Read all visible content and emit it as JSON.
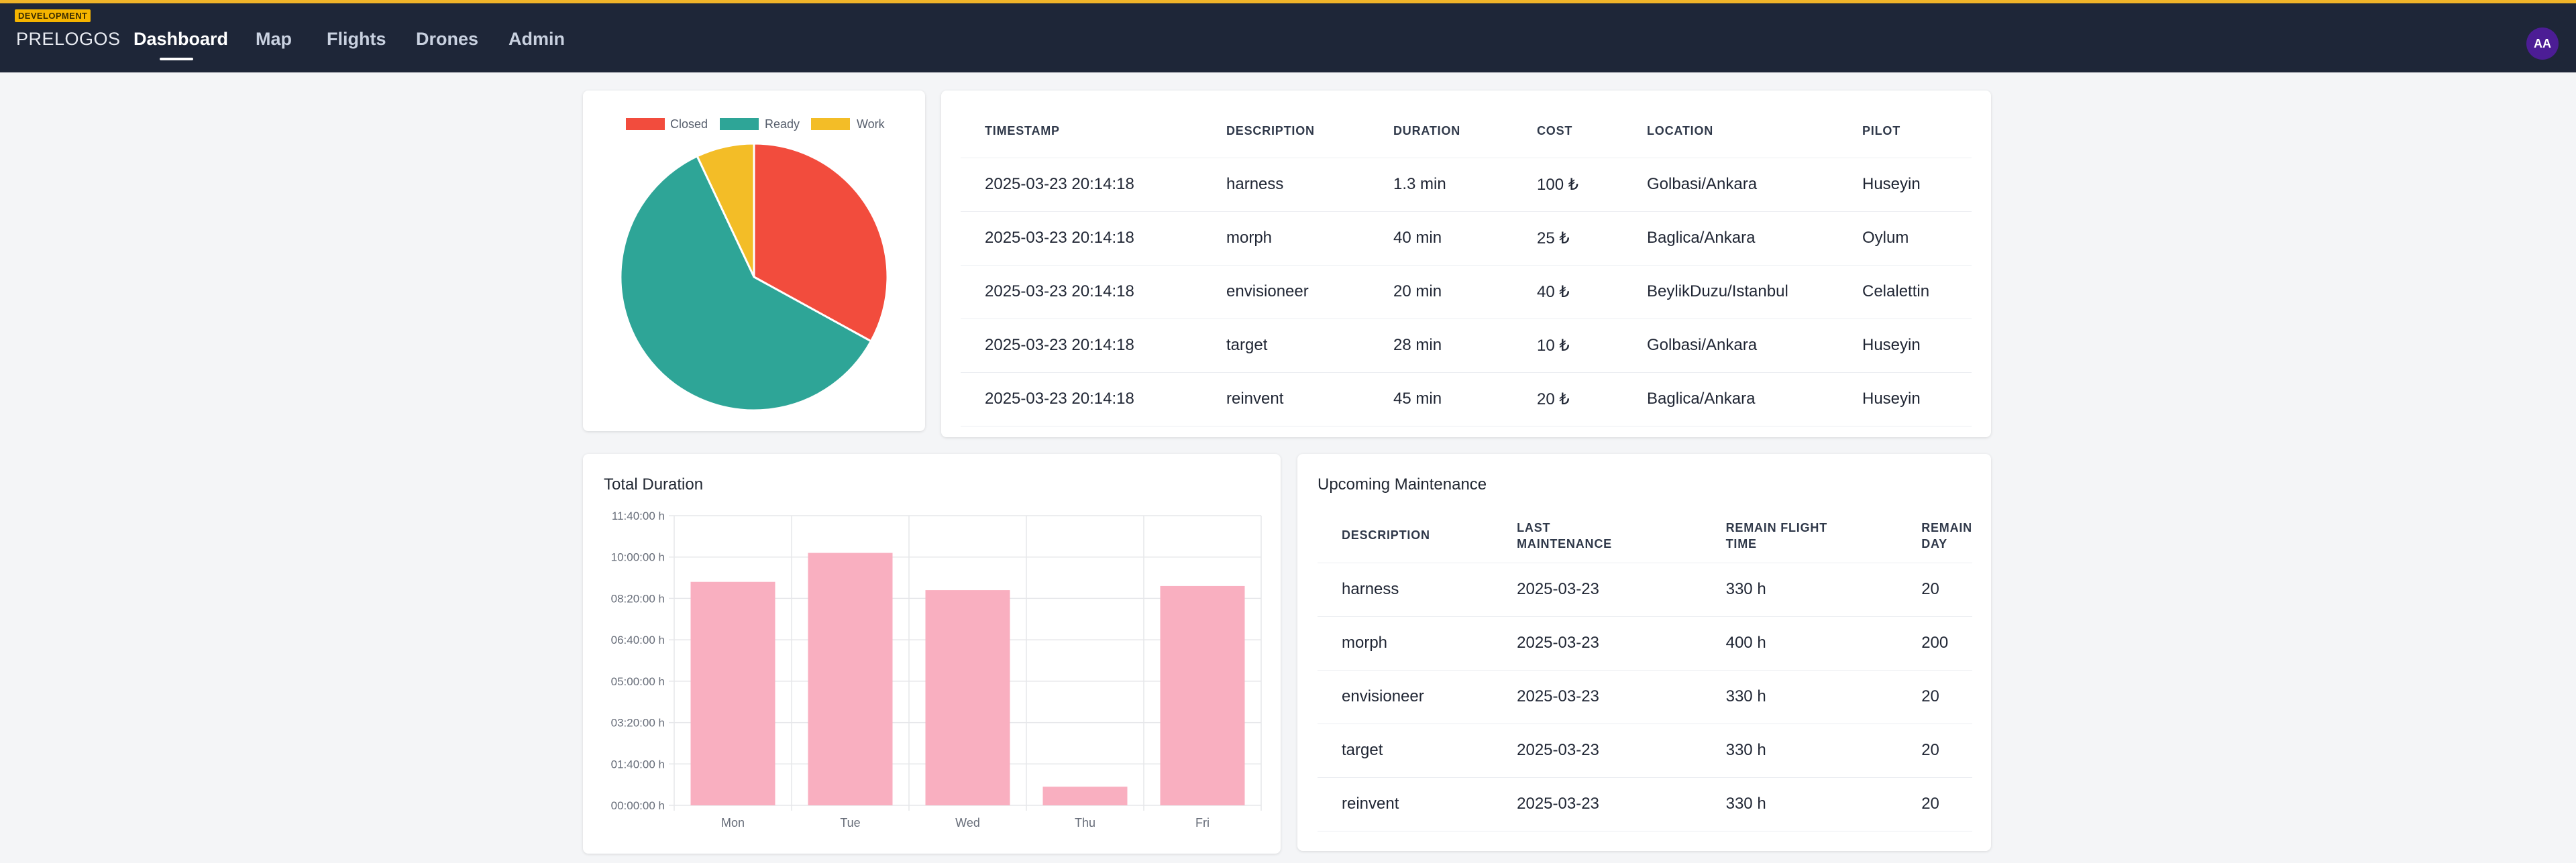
{
  "env_badge": "DEVELOPMENT",
  "brand": "PRELOGOS",
  "nav": {
    "items": [
      "Dashboard",
      "Map",
      "Flights",
      "Drones",
      "Admin"
    ],
    "active": "Dashboard"
  },
  "avatar": "AA",
  "status_pie": {
    "legend": [
      {
        "label": "Closed",
        "color": "#f24c3d"
      },
      {
        "label": "Ready",
        "color": "#2ea597"
      },
      {
        "label": "Work",
        "color": "#f3bd27"
      }
    ]
  },
  "flights_table": {
    "headers": [
      "TIMESTAMP",
      "DESCRIPTION",
      "DURATION",
      "COST",
      "LOCATION",
      "PILOT"
    ],
    "rows": [
      [
        "2025-03-23 20:14:18",
        "harness",
        "1.3 min",
        "100 ₺",
        "Golbasi/Ankara",
        "Huseyin"
      ],
      [
        "2025-03-23 20:14:18",
        "morph",
        "40 min",
        "25 ₺",
        "Baglica/Ankara",
        "Oylum"
      ],
      [
        "2025-03-23 20:14:18",
        "envisioneer",
        "20 min",
        "40 ₺",
        "BeylikDuzu/Istanbul",
        "Celalettin"
      ],
      [
        "2025-03-23 20:14:18",
        "target",
        "28 min",
        "10 ₺",
        "Golbasi/Ankara",
        "Huseyin"
      ],
      [
        "2025-03-23 20:14:18",
        "reinvent",
        "45 min",
        "20 ₺",
        "Baglica/Ankara",
        "Huseyin"
      ]
    ]
  },
  "duration_card": {
    "title": "Total Duration"
  },
  "maintenance_card": {
    "title": "Upcoming Maintenance",
    "headers": [
      [
        "DESCRIPTION"
      ],
      [
        "LAST",
        "MAINTENANCE"
      ],
      [
        "REMAIN FLIGHT",
        "TIME"
      ],
      [
        "REMAIN",
        "DAY"
      ]
    ],
    "rows": [
      [
        "harness",
        "2025-03-23",
        "330 h",
        "20"
      ],
      [
        "morph",
        "2025-03-23",
        "400 h",
        "200"
      ],
      [
        "envisioneer",
        "2025-03-23",
        "330 h",
        "20"
      ],
      [
        "target",
        "2025-03-23",
        "330 h",
        "20"
      ],
      [
        "reinvent",
        "2025-03-23",
        "330 h",
        "20"
      ]
    ]
  },
  "chart_data": [
    {
      "type": "pie",
      "categories": [
        "Closed",
        "Ready",
        "Work"
      ],
      "values": [
        33,
        60,
        7
      ],
      "colors": [
        "#f24c3d",
        "#2ea597",
        "#f3bd27"
      ],
      "legend": "top"
    },
    {
      "type": "bar",
      "title": "Total Duration",
      "categories": [
        "Mon",
        "Tue",
        "Wed",
        "Thu",
        "Fri"
      ],
      "values_seconds": [
        32400,
        36600,
        31200,
        2700,
        31800
      ],
      "y_ticks": [
        "00:00:00 h",
        "01:40:00 h",
        "03:20:00 h",
        "05:00:00 h",
        "06:40:00 h",
        "08:20:00 h",
        "10:00:00 h",
        "11:40:00 h"
      ],
      "ylim_seconds": [
        0,
        42000
      ],
      "bar_color": "#f9afc0",
      "grid": true
    }
  ]
}
